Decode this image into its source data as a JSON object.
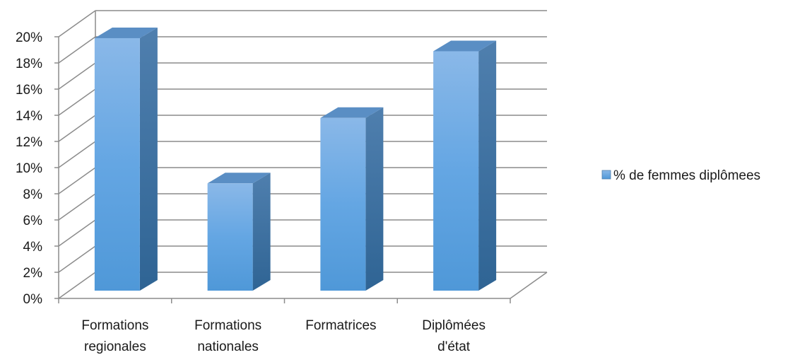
{
  "chart_data": {
    "type": "bar",
    "categories": [
      [
        "Formations",
        "regionales"
      ],
      [
        "Formations",
        "nationales"
      ],
      [
        "Formatrices"
      ],
      [
        "Diplômées",
        "d'état"
      ]
    ],
    "series": [
      {
        "name": "% de femmes diplômees",
        "values": [
          19.3,
          8.2,
          13.2,
          18.3
        ],
        "color": "#5b9bd5"
      }
    ],
    "yticks": [
      "0%",
      "2%",
      "4%",
      "6%",
      "8%",
      "10%",
      "12%",
      "14%",
      "16%",
      "18%",
      "20%"
    ],
    "ylim": [
      0,
      20
    ],
    "grid": true,
    "legend_position": "right",
    "title": "",
    "xlabel": "",
    "ylabel": ""
  }
}
